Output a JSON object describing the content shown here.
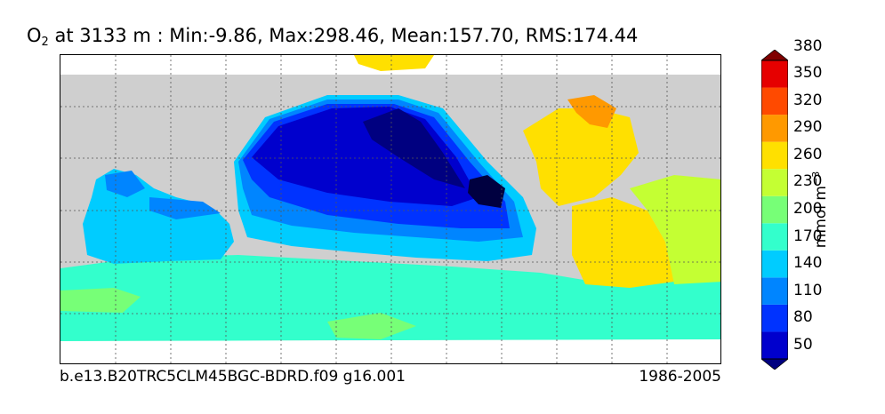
{
  "title": {
    "variable": "O",
    "subscript": "2",
    "rest": " at 3133 m : Min:-9.86, Max:298.46, Mean:157.70, RMS:174.44"
  },
  "footer": {
    "case_name": "b.e13.B20TRC5CLM45BGC-BDRD.f09 g16.001",
    "period": "1986-2005"
  },
  "colorbar": {
    "unit_main": "mmol m",
    "unit_exp": "−3",
    "ticks": [
      "50",
      "80",
      "110",
      "140",
      "170",
      "200",
      "230",
      "260",
      "290",
      "320",
      "350",
      "380"
    ],
    "colors": [
      "#000080",
      "#0000cd",
      "#0033ff",
      "#0085ff",
      "#00ccff",
      "#33ffcc",
      "#77ff77",
      "#c4ff33",
      "#ffe000",
      "#ff9900",
      "#ff4a00",
      "#e60000",
      "#800000"
    ]
  },
  "map_colors": {
    "land": "#cfcfcf",
    "missing": "#ffffff",
    "o2_deep_low": "#000040",
    "o2_low": "#000080",
    "o2_mid_low": "#0000cd",
    "o2_80": "#0033ff",
    "o2_110": "#0085ff",
    "o2_140": "#00ccff",
    "o2_170": "#33ffcc",
    "o2_200": "#77ff77",
    "o2_230": "#c4ff33",
    "o2_260": "#ffe000",
    "o2_290": "#ff9900"
  }
}
